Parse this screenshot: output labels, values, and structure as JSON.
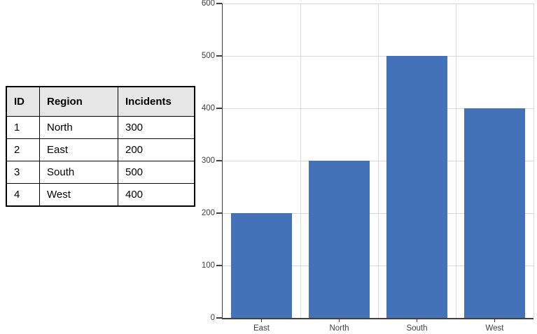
{
  "table": {
    "headers": [
      "ID",
      "Region",
      "Incidents"
    ],
    "rows": [
      [
        "1",
        "North",
        "300"
      ],
      [
        "2",
        "East",
        "200"
      ],
      [
        "3",
        "South",
        "500"
      ],
      [
        "4",
        "West",
        "400"
      ]
    ],
    "header_bg": "#e7e6e6",
    "border_color": "#000000"
  },
  "chart_data": {
    "type": "bar",
    "categories": [
      "East",
      "North",
      "South",
      "West"
    ],
    "values": [
      200,
      300,
      500,
      400
    ],
    "title": "",
    "xlabel": "",
    "ylabel": "",
    "ylim": [
      0,
      600
    ],
    "yticks": [
      0,
      100,
      200,
      300,
      400,
      500,
      600
    ],
    "grid": true,
    "legend_position": "none",
    "bar_color": "#4472b9",
    "gridline_color": "#d9d9d9",
    "axis_color": "#404040",
    "tick_label_color": "#3f3f3f"
  }
}
